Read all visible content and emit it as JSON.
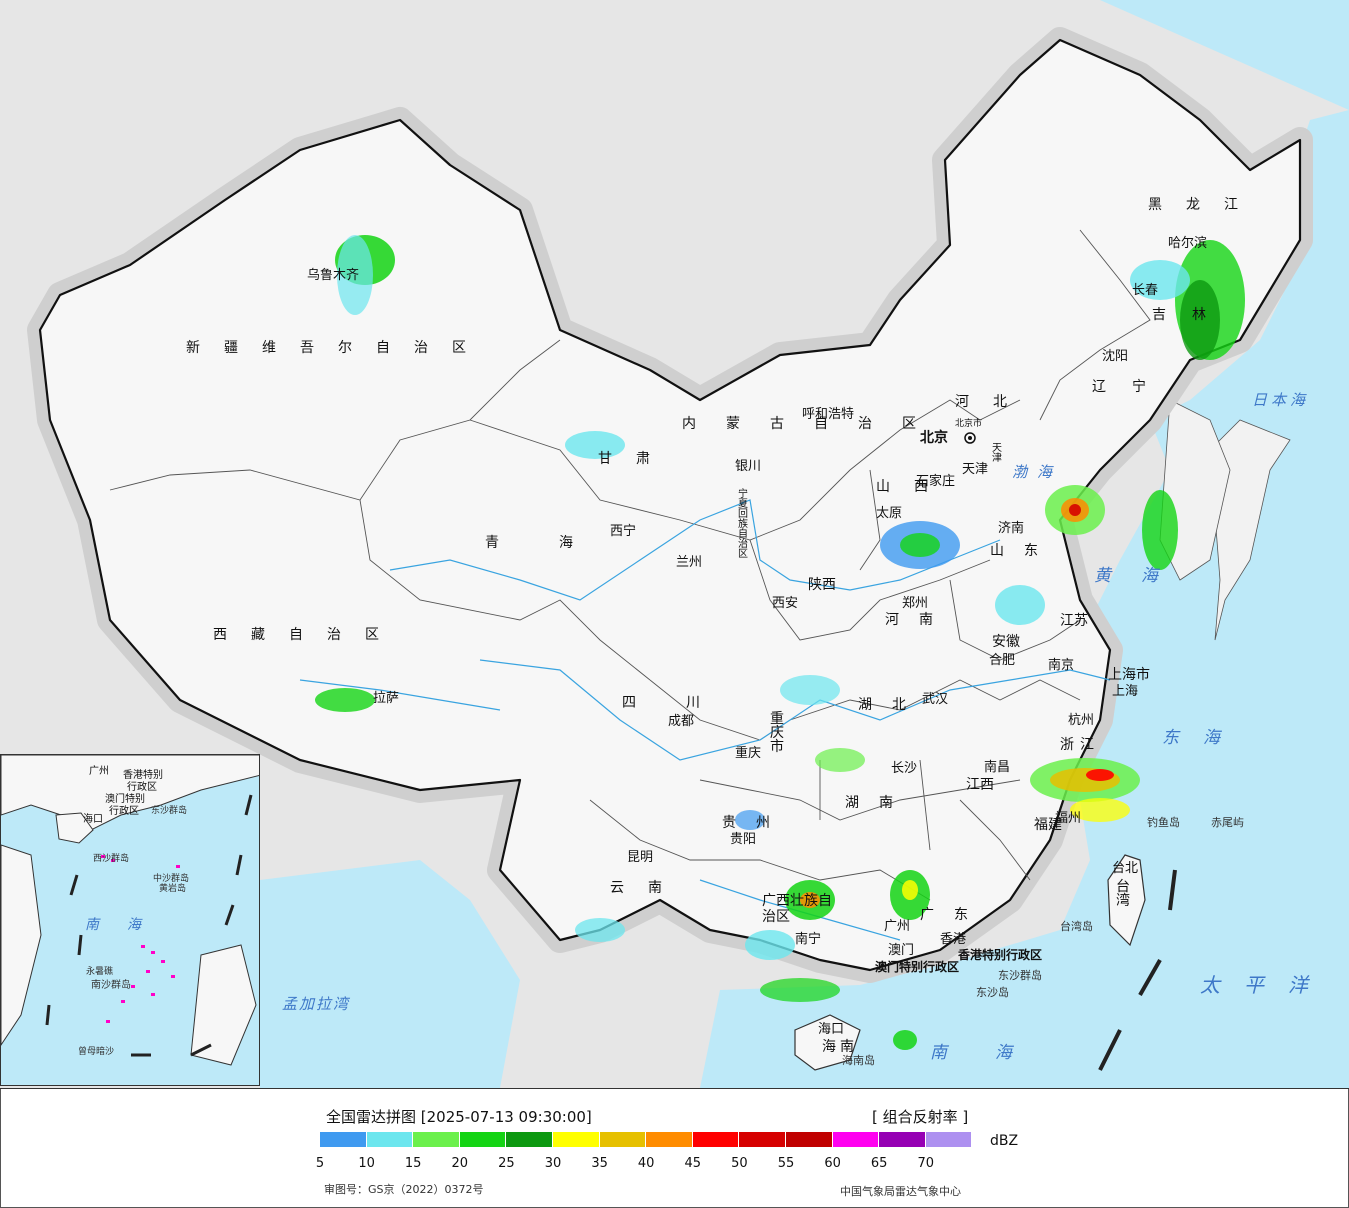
{
  "map": {
    "provinces": [
      "新疆维吾尔自治区",
      "西藏自治区",
      "青海",
      "甘肃",
      "四川",
      "云南",
      "内蒙古自治区",
      "黑龙江",
      "吉林",
      "辽宁",
      "河北",
      "山西",
      "山东",
      "河南",
      "陕西",
      "湖北",
      "湖南",
      "江西",
      "安徽",
      "江苏",
      "浙江",
      "福建",
      "广东",
      "广西壮族自治区",
      "贵州",
      "海南",
      "宁夏回族自治区",
      "重庆市",
      "上海市",
      "台湾",
      "天津",
      "北京市"
    ],
    "cities": [
      "乌鲁木齐",
      "拉萨",
      "西宁",
      "兰州",
      "银川",
      "呼和浩特",
      "北京",
      "天津",
      "石家庄",
      "太原",
      "济南",
      "郑州",
      "西安",
      "成都",
      "重庆",
      "武汉",
      "合肥",
      "南京",
      "上海",
      "杭州",
      "南昌",
      "长沙",
      "福州",
      "台北",
      "广州",
      "香港",
      "澳门",
      "南宁",
      "海口",
      "贵阳",
      "昆明",
      "沈阳",
      "长春",
      "哈尔滨"
    ],
    "seas": [
      "日本海",
      "渤海",
      "黄海",
      "东海",
      "太平洋",
      "南海",
      "孟加拉湾"
    ],
    "islands": [
      "钓鱼岛",
      "赤尾屿",
      "东沙群岛",
      "东沙岛",
      "台湾岛",
      "海南岛",
      "香港特别行政区",
      "澳门特别行政区"
    ],
    "inset": {
      "labels": [
        "广州",
        "香港特别",
        "行政区",
        "澳门特别",
        "行政区",
        "海口",
        "中沙群岛",
        "西沙群岛",
        "东沙群岛",
        "南海",
        "南沙群岛",
        "曾母暗沙",
        "永暑礁",
        "黄岩岛"
      ]
    }
  },
  "legend": {
    "title": "全国雷达拼图 [2025-07-13 09:30:00]",
    "product": "[ 组合反射率 ]",
    "unit": "dBZ",
    "scale": [
      {
        "value": "5",
        "color": "#3f9af0"
      },
      {
        "value": "10",
        "color": "#6ce6ee"
      },
      {
        "value": "15",
        "color": "#6bf04c"
      },
      {
        "value": "20",
        "color": "#14d414"
      },
      {
        "value": "25",
        "color": "#0c9910"
      },
      {
        "value": "30",
        "color": "#ffff00"
      },
      {
        "value": "35",
        "color": "#e6c000"
      },
      {
        "value": "40",
        "color": "#ff8c00"
      },
      {
        "value": "45",
        "color": "#ff0000"
      },
      {
        "value": "50",
        "color": "#d60000"
      },
      {
        "value": "55",
        "color": "#c00000"
      },
      {
        "value": "60",
        "color": "#ff00f0"
      },
      {
        "value": "65",
        "color": "#9600b4"
      },
      {
        "value": "70",
        "color": "#ad90f0"
      }
    ],
    "approval": "审图号：GS京（2022）0372号",
    "source": "中国气象局雷达气象中心"
  }
}
